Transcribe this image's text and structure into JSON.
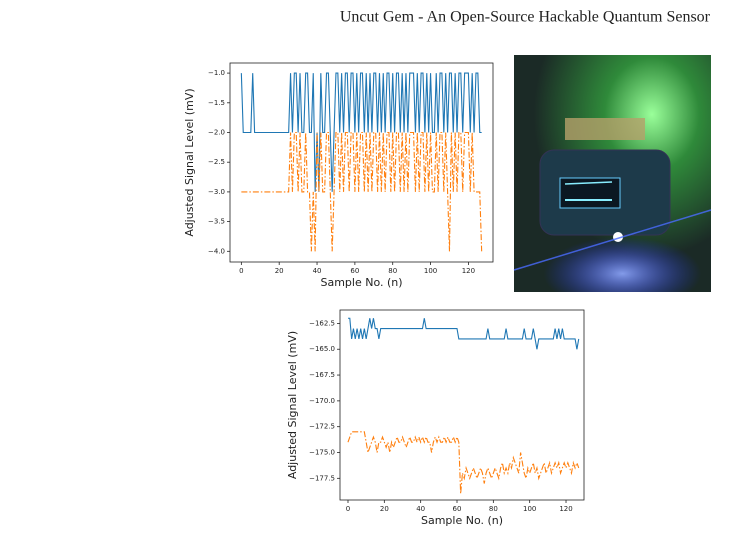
{
  "title": "Uncut Gem - An Open-Source Hackable Quantum Sensor",
  "chart_data": [
    {
      "type": "line",
      "xlabel": "Sample No. (n)",
      "ylabel": "Adjusted Signal Level (mV)",
      "x": [
        0,
        1,
        2,
        3,
        4,
        5,
        6,
        7,
        8,
        9,
        10,
        11,
        12,
        13,
        14,
        15,
        16,
        17,
        18,
        19,
        20,
        21,
        22,
        23,
        24,
        25,
        26,
        27,
        28,
        29,
        30,
        31,
        32,
        33,
        34,
        35,
        36,
        37,
        38,
        39,
        40,
        41,
        42,
        43,
        44,
        45,
        46,
        47,
        48,
        49,
        50,
        51,
        52,
        53,
        54,
        55,
        56,
        57,
        58,
        59,
        60,
        61,
        62,
        63,
        64,
        65,
        66,
        67,
        68,
        69,
        70,
        71,
        72,
        73,
        74,
        75,
        76,
        77,
        78,
        79,
        80,
        81,
        82,
        83,
        84,
        85,
        86,
        87,
        88,
        89,
        90,
        91,
        92,
        93,
        94,
        95,
        96,
        97,
        98,
        99,
        100,
        101,
        102,
        103,
        104,
        105,
        106,
        107,
        108,
        109,
        110,
        111,
        112,
        113,
        114,
        115,
        116,
        117,
        118,
        119,
        120,
        121,
        122,
        123,
        124,
        125,
        126,
        127
      ],
      "series": [
        {
          "color": "#1f77b4",
          "linestyle": "solid",
          "values": [
            -1,
            -2,
            -2,
            -2,
            -2,
            -2,
            -1,
            -2,
            -2,
            -2,
            -2,
            -2,
            -2,
            -2,
            -2,
            -2,
            -2,
            -2,
            -2,
            -2,
            -2,
            -2,
            -2,
            -2,
            -2,
            -2,
            -1,
            -2,
            -1,
            -1,
            -2,
            -1,
            -2,
            -2,
            -1,
            -1,
            -2,
            -2,
            -1,
            -3,
            -2,
            -3,
            -1,
            -2,
            -2,
            -1,
            -1,
            -2,
            -3,
            -2,
            -1,
            -1,
            -2,
            -1,
            -2,
            -1,
            -1,
            -2,
            -1,
            -1,
            -2,
            -1,
            -2,
            -1,
            -1,
            -2,
            -1,
            -2,
            -1,
            -2,
            -1,
            -1,
            -2,
            -1,
            -2,
            -1,
            -2,
            -1,
            -1,
            -2,
            -1,
            -2,
            -1,
            -1,
            -2,
            -1,
            -2,
            -1,
            -2,
            -1,
            -1,
            -1,
            -2,
            -1,
            -2,
            -1,
            -1,
            -2,
            -1,
            -2,
            -1,
            -2,
            -2,
            -1,
            -2,
            -1,
            -1,
            -2,
            -1,
            -2,
            -1,
            -1,
            -2,
            -1,
            -2,
            -1,
            -1,
            -2,
            -1,
            -1,
            -1,
            -2,
            -1,
            -2,
            -1,
            -1,
            -2,
            -2
          ]
        },
        {
          "color": "#ff7f0e",
          "linestyle": "dashdot",
          "values": [
            -3,
            -3,
            -3,
            -3,
            -3,
            -3,
            -3,
            -3,
            -3,
            -3,
            -3,
            -3,
            -3,
            -3,
            -3,
            -3,
            -3,
            -3,
            -3,
            -3,
            -3,
            -3,
            -3,
            -3,
            -3,
            -3,
            -2,
            -3,
            -2,
            -2,
            -3,
            -2,
            -3,
            -3,
            -2,
            -3,
            -3,
            -4,
            -3,
            -4,
            -2,
            -3,
            -2,
            -3,
            -3,
            -2,
            -2,
            -3,
            -4,
            -3,
            -2,
            -2,
            -3,
            -2,
            -3,
            -2,
            -2,
            -3,
            -2,
            -2,
            -3,
            -2,
            -3,
            -2,
            -2,
            -3,
            -2,
            -3,
            -2,
            -3,
            -2,
            -2,
            -3,
            -2,
            -3,
            -2,
            -3,
            -2,
            -2,
            -3,
            -2,
            -3,
            -2,
            -2,
            -3,
            -2,
            -3,
            -2,
            -3,
            -2,
            -2,
            -2,
            -3,
            -2,
            -3,
            -2,
            -2,
            -3,
            -2,
            -3,
            -2,
            -3,
            -3,
            -2,
            -3,
            -2,
            -2,
            -3,
            -2,
            -3,
            -4,
            -2,
            -3,
            -2,
            -3,
            -2,
            -2,
            -3,
            -2,
            -2,
            -2,
            -3,
            -2,
            -3,
            -3,
            -3,
            -3,
            -4
          ]
        }
      ],
      "xlim": [
        -6,
        133
      ],
      "ylim": [
        -4.18,
        -0.83
      ],
      "xticks": [
        0,
        20,
        40,
        60,
        80,
        100,
        120
      ],
      "yticks": [
        {
          "value": -1.0,
          "label": "−1.0"
        },
        {
          "value": -1.5,
          "label": "−1.5"
        },
        {
          "value": -2.0,
          "label": "−2.0"
        },
        {
          "value": -2.5,
          "label": "−2.5"
        },
        {
          "value": -3.0,
          "label": "−3.0"
        },
        {
          "value": -3.5,
          "label": "−3.5"
        },
        {
          "value": -4.0,
          "label": "−4.0"
        }
      ]
    },
    {
      "type": "line",
      "xlabel": "Sample No. (n)",
      "ylabel": "Adjusted Signal Level (mV)",
      "x": [
        0,
        1,
        2,
        3,
        4,
        5,
        6,
        7,
        8,
        9,
        10,
        11,
        12,
        13,
        14,
        15,
        16,
        17,
        18,
        19,
        20,
        21,
        22,
        23,
        24,
        25,
        26,
        27,
        28,
        29,
        30,
        31,
        32,
        33,
        34,
        35,
        36,
        37,
        38,
        39,
        40,
        41,
        42,
        43,
        44,
        45,
        46,
        47,
        48,
        49,
        50,
        51,
        52,
        53,
        54,
        55,
        56,
        57,
        58,
        59,
        60,
        61,
        62,
        63,
        64,
        65,
        66,
        67,
        68,
        69,
        70,
        71,
        72,
        73,
        74,
        75,
        76,
        77,
        78,
        79,
        80,
        81,
        82,
        83,
        84,
        85,
        86,
        87,
        88,
        89,
        90,
        91,
        92,
        93,
        94,
        95,
        96,
        97,
        98,
        99,
        100,
        101,
        102,
        103,
        104,
        105,
        106,
        107,
        108,
        109,
        110,
        111,
        112,
        113,
        114,
        115,
        116,
        117,
        118,
        119,
        120,
        121,
        122,
        123,
        124,
        125,
        126,
        127
      ],
      "series": [
        {
          "color": "#1f77b4",
          "linestyle": "solid",
          "values": [
            -162,
            -162,
            -164,
            -163,
            -164,
            -163,
            -164,
            -163,
            -164,
            -163,
            -164,
            -163,
            -162,
            -163,
            -162,
            -163,
            -163,
            -164,
            -163,
            -163,
            -163,
            -163,
            -163,
            -163,
            -163,
            -163,
            -163,
            -163,
            -163,
            -163,
            -163,
            -163,
            -163,
            -163,
            -163,
            -163,
            -163,
            -163,
            -163,
            -163,
            -163,
            -163,
            -162,
            -163,
            -163,
            -163,
            -163,
            -163,
            -163,
            -163,
            -163,
            -163,
            -163,
            -163,
            -163,
            -163,
            -163,
            -163,
            -163,
            -163,
            -163,
            -164,
            -164,
            -164,
            -164,
            -164,
            -164,
            -164,
            -164,
            -164,
            -164,
            -164,
            -164,
            -164,
            -164,
            -164,
            -164,
            -163,
            -164,
            -164,
            -164,
            -164,
            -164,
            -164,
            -164,
            -164,
            -164,
            -163,
            -164,
            -164,
            -164,
            -164,
            -164,
            -164,
            -164,
            -164,
            -164,
            -163,
            -164,
            -164,
            -164,
            -164,
            -163,
            -164,
            -165,
            -164,
            -164,
            -164,
            -164,
            -164,
            -164,
            -164,
            -164,
            -164,
            -163,
            -164,
            -163,
            -164,
            -163,
            -164,
            -164,
            -164,
            -164,
            -164,
            -164,
            -164,
            -165,
            -164
          ]
        },
        {
          "color": "#ff7f0e",
          "linestyle": "dashdot",
          "values": [
            -174,
            -173.5,
            -173,
            -173,
            -173,
            -173,
            -173,
            -173,
            -173,
            -173,
            -174,
            -175,
            -174.5,
            -174,
            -173.5,
            -174,
            -175,
            -174,
            -174,
            -173.5,
            -174,
            -174.5,
            -174,
            -175,
            -174,
            -174.5,
            -174,
            -173.5,
            -174,
            -174,
            -173.5,
            -174,
            -174.5,
            -174,
            -173.5,
            -174,
            -174,
            -173.5,
            -174,
            -173.5,
            -174,
            -173.5,
            -174,
            -173.5,
            -174,
            -174,
            -175,
            -174,
            -173.5,
            -174,
            -173.5,
            -174,
            -174,
            -173.5,
            -174,
            -173.5,
            -174,
            -174,
            -173.5,
            -174,
            -173.5,
            -174,
            -179,
            -177,
            -177.5,
            -176.5,
            -177,
            -177.5,
            -177,
            -176.5,
            -177,
            -177.5,
            -177,
            -176.5,
            -177,
            -178,
            -177,
            -176.5,
            -177,
            -177.5,
            -177,
            -176.5,
            -177,
            -177.5,
            -176.5,
            -176,
            -177,
            -176.5,
            -177,
            -176,
            -176.5,
            -175.5,
            -176,
            -176.5,
            -177,
            -175,
            -176,
            -177,
            -177.5,
            -176.5,
            -177,
            -176.5,
            -176,
            -177,
            -176.5,
            -177.5,
            -177,
            -176.5,
            -176,
            -177,
            -176.5,
            -176,
            -177,
            -176.5,
            -176,
            -176.5,
            -176,
            -177,
            -176.5,
            -176,
            -176.5,
            -176,
            -176.5,
            -177,
            -176,
            -176.5,
            -176,
            -176.5
          ]
        }
      ],
      "xlim": [
        -4.4,
        129.9
      ],
      "ylim": [
        -179.6,
        -161.2
      ],
      "xticks": [
        0,
        20,
        40,
        60,
        80,
        100,
        120
      ],
      "yticks": [
        {
          "value": -162.5,
          "label": "−162.5"
        },
        {
          "value": -165.0,
          "label": "−165.0"
        },
        {
          "value": -167.5,
          "label": "−167.5"
        },
        {
          "value": -170.0,
          "label": "−170.0"
        },
        {
          "value": -172.5,
          "label": "−172.5"
        },
        {
          "value": -175.0,
          "label": "−175.0"
        },
        {
          "value": -177.5,
          "label": "−177.5"
        }
      ]
    }
  ]
}
